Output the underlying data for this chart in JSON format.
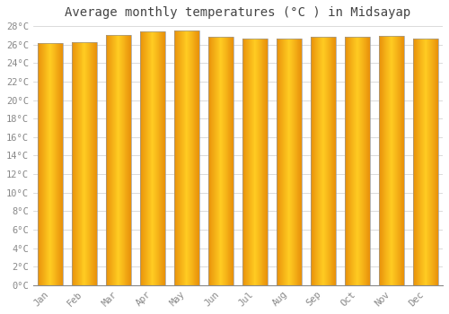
{
  "title": "Average monthly temperatures (°C ) in Midsayap",
  "months": [
    "Jan",
    "Feb",
    "Mar",
    "Apr",
    "May",
    "Jun",
    "Jul",
    "Aug",
    "Sep",
    "Oct",
    "Nov",
    "Dec"
  ],
  "values": [
    26.2,
    26.3,
    27.0,
    27.4,
    27.5,
    26.8,
    26.6,
    26.6,
    26.8,
    26.8,
    26.9,
    26.6
  ],
  "bar_color_left": "#E8900A",
  "bar_color_center": "#FFCC22",
  "bar_color_right": "#E8900A",
  "bar_edge_color": "#999999",
  "ylim": [
    0,
    28
  ],
  "yticks": [
    0,
    2,
    4,
    6,
    8,
    10,
    12,
    14,
    16,
    18,
    20,
    22,
    24,
    26,
    28
  ],
  "background_color": "#FFFFFF",
  "plot_bg_color": "#FFFFFF",
  "grid_color": "#CCCCCC",
  "title_fontsize": 10,
  "tick_fontsize": 7.5,
  "font_family": "monospace",
  "bar_width": 0.75
}
